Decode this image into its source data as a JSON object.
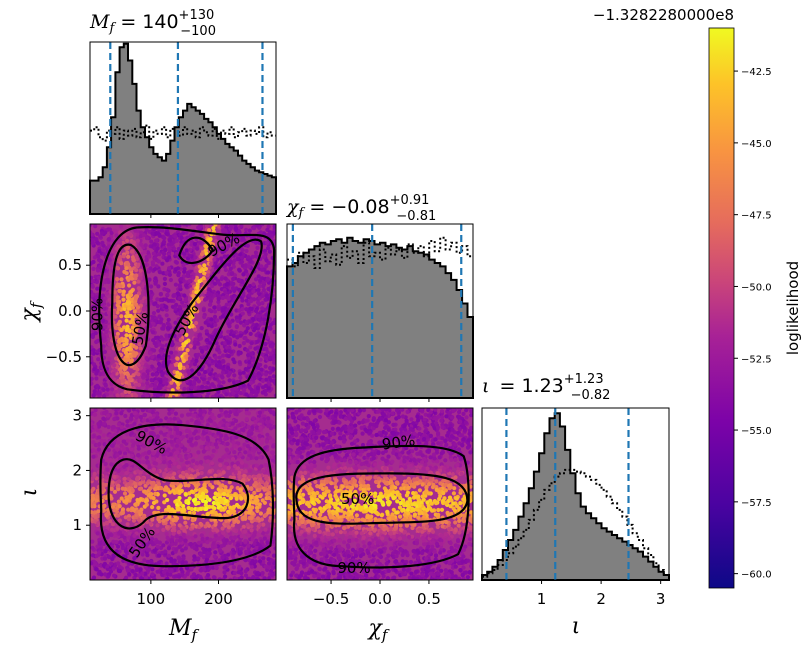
{
  "chart_data": {
    "type": "corner",
    "parameters": [
      {
        "key": "Mf",
        "symbol": "M",
        "sub": "f",
        "range": [
          10,
          285
        ],
        "ticks": [
          100,
          200
        ],
        "tick_labels": [
          "100",
          "200"
        ]
      },
      {
        "key": "chif",
        "symbol": "χ",
        "sub": "f",
        "range": [
          -0.95,
          0.95
        ],
        "ticks": [
          -0.5,
          0.0,
          0.5
        ],
        "tick_labels": [
          "−0.5",
          "0.0",
          "0.5"
        ]
      },
      {
        "key": "iota",
        "symbol": "ι",
        "sub": "",
        "range": [
          0.0,
          3.14
        ],
        "ticks": [
          1,
          2,
          3
        ],
        "tick_labels": [
          "1",
          "2",
          "3"
        ]
      }
    ],
    "titles": [
      {
        "lhs": "M",
        "sub": "f",
        "median": "140",
        "plus": "+130",
        "minus": "−100"
      },
      {
        "lhs": "χ",
        "sub": "f",
        "median": "−0.08",
        "plus": "+0.91",
        "minus": "−0.81"
      },
      {
        "lhs": "ι",
        "sub": "",
        "median": "1.23",
        "plus": "+1.23",
        "minus": "−0.82"
      }
    ],
    "quantile_lines": [
      [
        40,
        140,
        265
      ],
      [
        -0.89,
        -0.08,
        0.83
      ],
      [
        0.41,
        1.23,
        2.46
      ]
    ],
    "histograms": [
      {
        "edges_range": [
          10,
          285
        ],
        "posterior": [
          0.2,
          0.2,
          0.22,
          0.28,
          0.4,
          0.58,
          0.85,
          1.0,
          1.02,
          0.92,
          0.78,
          0.62,
          0.52,
          0.46,
          0.4,
          0.36,
          0.34,
          0.32,
          0.36,
          0.44,
          0.52,
          0.58,
          0.62,
          0.66,
          0.64,
          0.62,
          0.6,
          0.57,
          0.55,
          0.52,
          0.48,
          0.45,
          0.42,
          0.4,
          0.38,
          0.35,
          0.32,
          0.3,
          0.28,
          0.26,
          0.25,
          0.24,
          0.23,
          0.22
        ],
        "prior": [
          0.5,
          0.52,
          0.46,
          0.44,
          0.5,
          0.48,
          0.52,
          0.45,
          0.5,
          0.47,
          0.51,
          0.46,
          0.49,
          0.53,
          0.45,
          0.5,
          0.48,
          0.52,
          0.46,
          0.51,
          0.49,
          0.47,
          0.52,
          0.48,
          0.5,
          0.46,
          0.52,
          0.49,
          0.47,
          0.51,
          0.45,
          0.5,
          0.48,
          0.52,
          0.46,
          0.49,
          0.51,
          0.47,
          0.5,
          0.48,
          0.52,
          0.46,
          0.49,
          0.47
        ]
      },
      {
        "edges_range": [
          -0.95,
          0.95
        ],
        "posterior": [
          0.78,
          0.8,
          0.84,
          0.86,
          0.88,
          0.9,
          0.92,
          0.91,
          0.93,
          0.94,
          0.92,
          0.95,
          0.93,
          0.92,
          0.94,
          0.93,
          0.91,
          0.92,
          0.9,
          0.91,
          0.89,
          0.88,
          0.9,
          0.87,
          0.86,
          0.85,
          0.82,
          0.8,
          0.78,
          0.74,
          0.7,
          0.64,
          0.56,
          0.48
        ],
        "prior": [
          0.82,
          0.78,
          0.86,
          0.8,
          0.84,
          0.77,
          0.88,
          0.81,
          0.85,
          0.79,
          0.9,
          0.83,
          0.87,
          0.8,
          0.92,
          0.84,
          0.86,
          0.82,
          0.89,
          0.85,
          0.88,
          0.83,
          0.91,
          0.86,
          0.9,
          0.84,
          0.93,
          0.87,
          0.95,
          0.88,
          0.92,
          0.86,
          0.9,
          0.84
        ]
      },
      {
        "edges_range": [
          0.0,
          3.14
        ],
        "posterior": [
          0.03,
          0.05,
          0.08,
          0.12,
          0.18,
          0.24,
          0.3,
          0.38,
          0.46,
          0.55,
          0.65,
          0.76,
          0.88,
          0.97,
          1.0,
          0.92,
          0.78,
          0.64,
          0.52,
          0.44,
          0.4,
          0.37,
          0.34,
          0.31,
          0.29,
          0.27,
          0.25,
          0.23,
          0.21,
          0.19,
          0.17,
          0.14,
          0.11,
          0.08,
          0.05,
          0.03
        ],
        "prior": [
          0.02,
          0.04,
          0.06,
          0.09,
          0.12,
          0.16,
          0.2,
          0.25,
          0.3,
          0.36,
          0.42,
          0.48,
          0.54,
          0.58,
          0.62,
          0.64,
          0.66,
          0.66,
          0.65,
          0.64,
          0.62,
          0.6,
          0.57,
          0.54,
          0.5,
          0.46,
          0.42,
          0.38,
          0.33,
          0.28,
          0.24,
          0.19,
          0.15,
          0.1,
          0.06,
          0.03
        ]
      }
    ],
    "contour_labels": [
      "50%",
      "90%"
    ],
    "colorbar": {
      "label": "loglikelihood",
      "offset_text": "−1.3282280000e8",
      "range": [
        -60.5,
        -41.0
      ],
      "ticks": [
        -60.0,
        -57.5,
        -55.0,
        -52.5,
        -50.0,
        -47.5,
        -45.0,
        -42.5
      ],
      "tick_labels": [
        "−60.0",
        "−57.5",
        "−55.0",
        "−52.5",
        "−50.0",
        "−47.5",
        "−45.0",
        "−42.5"
      ],
      "colormap": "plasma"
    },
    "colors": {
      "hist_fill": "#808080",
      "hist_edge": "#000000",
      "quantile_line": "#1f77b4",
      "contour": "#000000"
    }
  }
}
